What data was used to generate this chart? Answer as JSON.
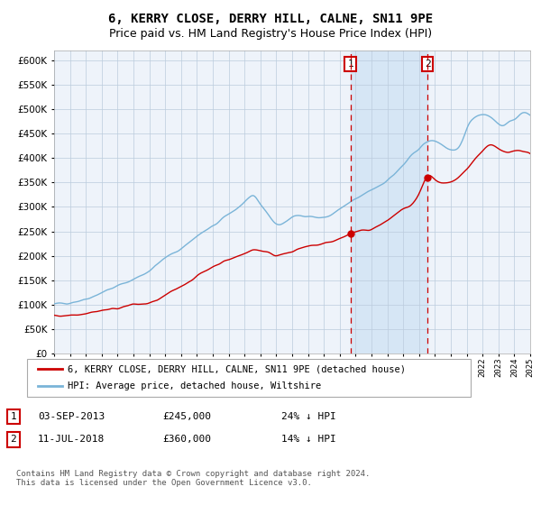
{
  "title": "6, KERRY CLOSE, DERRY HILL, CALNE, SN11 9PE",
  "subtitle": "Price paid vs. HM Land Registry's House Price Index (HPI)",
  "ylim": [
    0,
    620000
  ],
  "yticks": [
    0,
    50000,
    100000,
    150000,
    200000,
    250000,
    300000,
    350000,
    400000,
    450000,
    500000,
    550000,
    600000
  ],
  "x_start_year": 1995,
  "x_end_year": 2025,
  "hpi_color": "#7ab4d8",
  "property_color": "#cc0000",
  "background_color": "#eef3fa",
  "shade_color": "#d6e6f5",
  "grid_color": "#bbccdd",
  "transaction1_date": 2013.67,
  "transaction1_price": 245000,
  "transaction1_label": "1",
  "transaction2_date": 2018.53,
  "transaction2_price": 360000,
  "transaction2_label": "2",
  "legend_label_property": "6, KERRY CLOSE, DERRY HILL, CALNE, SN11 9PE (detached house)",
  "legend_label_hpi": "HPI: Average price, detached house, Wiltshire",
  "footnote": "Contains HM Land Registry data © Crown copyright and database right 2024.\nThis data is licensed under the Open Government Licence v3.0.",
  "title_fontsize": 10,
  "subtitle_fontsize": 9
}
